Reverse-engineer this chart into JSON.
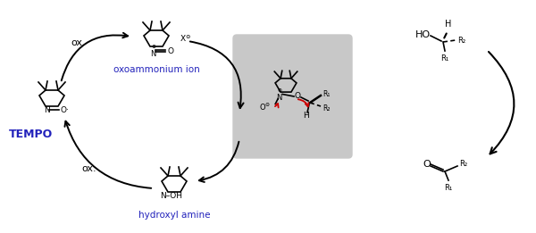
{
  "fig_width": 6.0,
  "fig_height": 2.61,
  "dpi": 100,
  "bg_color": "#ffffff",
  "tempo_label": "TEMPO",
  "tempo_color": "#2222bb",
  "oxoammonium_label": "oxoammonium ion",
  "oxoammonium_color": "#2222bb",
  "hydroxyl_label": "hydroxyl amine",
  "hydroxyl_color": "#2222bb",
  "ox_label": "ox.",
  "ox_color": "#000000",
  "red_color": "#cc0000",
  "gray_box_color": "#c8c8c8",
  "line_color": "#000000",
  "lw": 1.2
}
